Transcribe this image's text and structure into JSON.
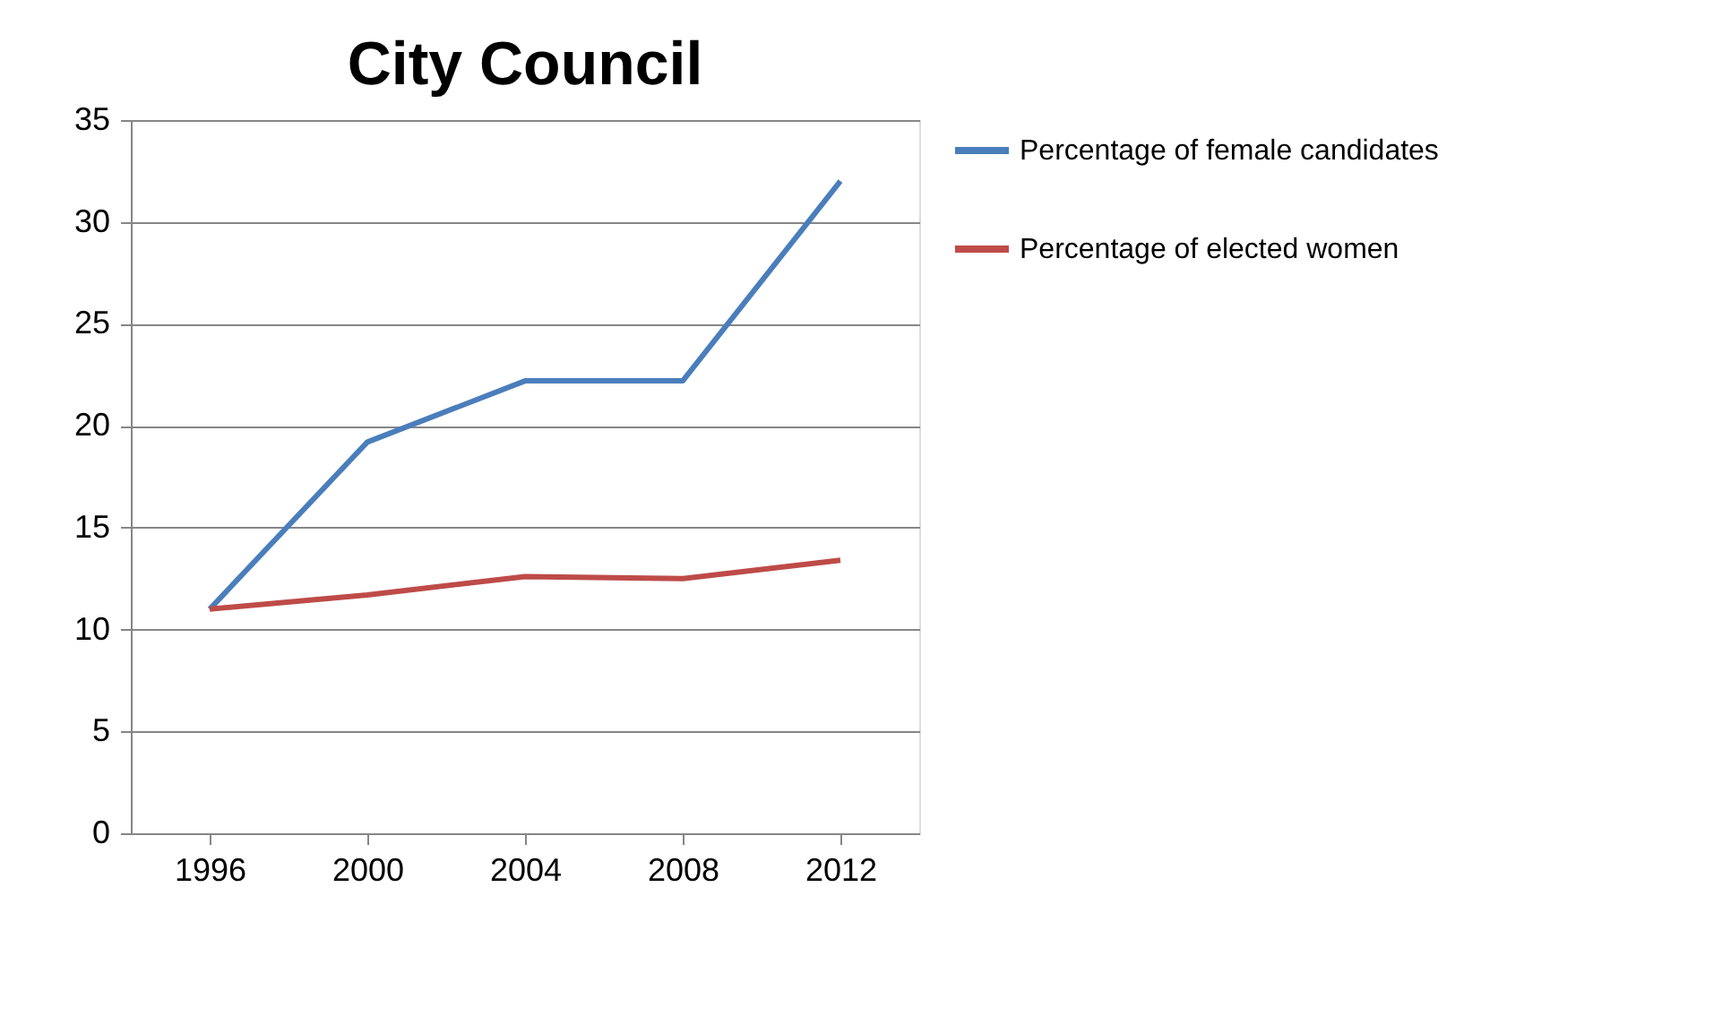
{
  "chart_data": {
    "type": "line",
    "title": "City Council",
    "categories": [
      "1996",
      "2000",
      "2004",
      "2008",
      "2012"
    ],
    "series": [
      {
        "name": "Percentage of female candidates",
        "color": "#4a7ebb",
        "values": [
          11,
          19.2,
          22.2,
          22.2,
          32
        ]
      },
      {
        "name": "Percentage of elected women",
        "color": "#be4b48",
        "values": [
          11,
          11.7,
          12.6,
          12.5,
          13.4
        ]
      }
    ],
    "ylim": [
      0,
      35
    ],
    "yticks": [
      0,
      5,
      10,
      15,
      20,
      25,
      30,
      35
    ],
    "grid": "y",
    "legend": "right",
    "marker": "none",
    "line_style": "solid"
  }
}
